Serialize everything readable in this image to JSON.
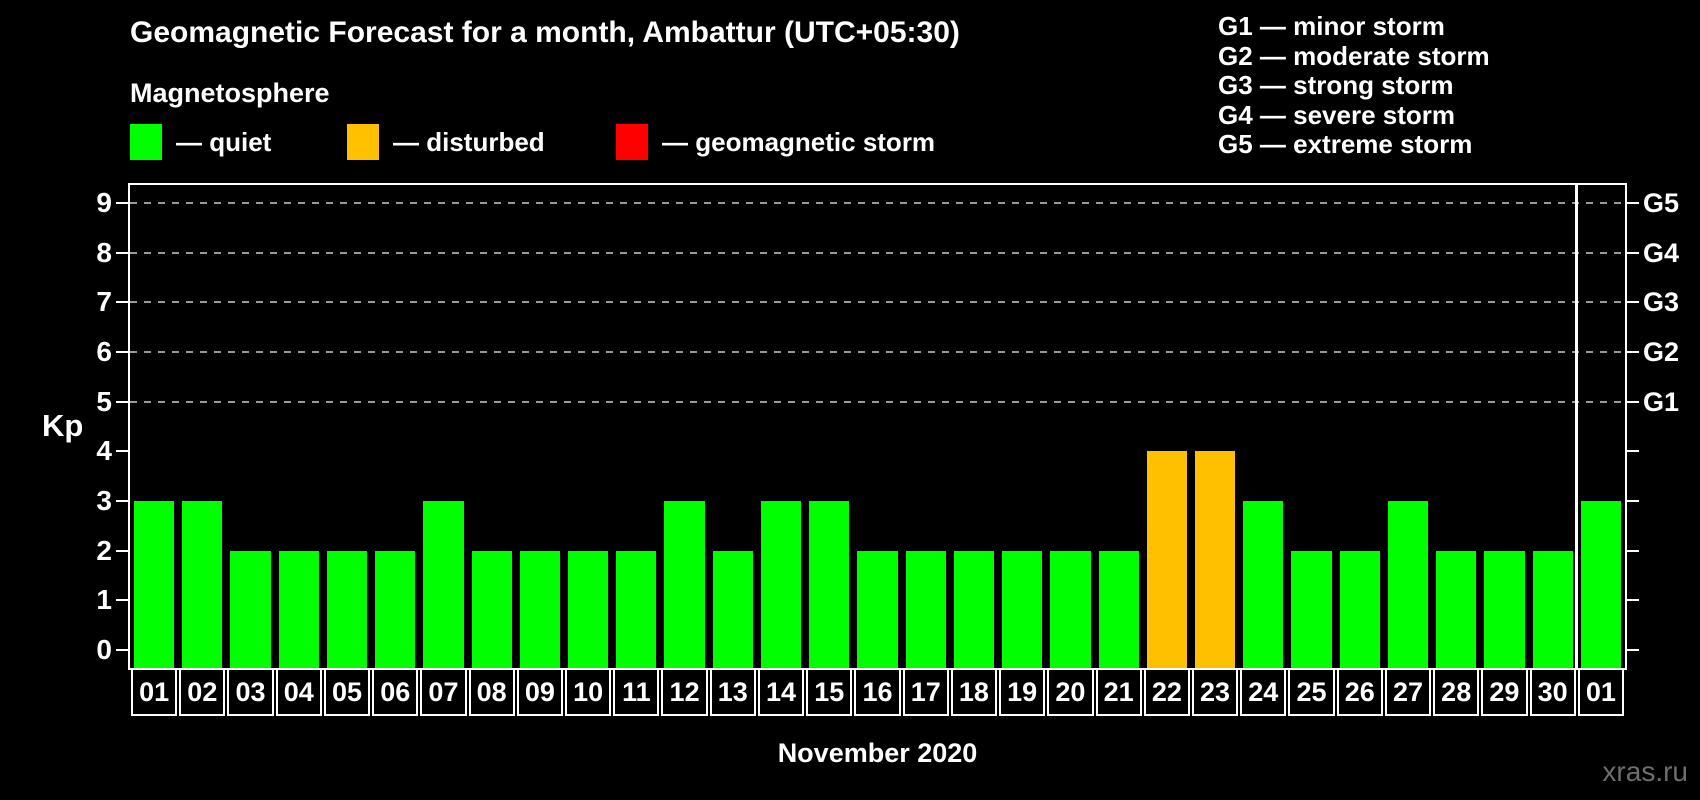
{
  "title": "Geomagnetic Forecast for a month, Ambattur (UTC+05:30)",
  "subtitle": "Magnetosphere",
  "legend": {
    "items": [
      {
        "key": "quiet",
        "label": "— quiet",
        "color": "#00ff00"
      },
      {
        "key": "disturbed",
        "label": "— disturbed",
        "color": "#ffc000"
      },
      {
        "key": "storm",
        "label": "— geomagnetic storm",
        "color": "#ff0000"
      }
    ]
  },
  "storm_scale_legend": [
    "G1 — minor storm",
    "G2 — moderate storm",
    "G3 — strong storm",
    "G4 — severe storm",
    "G5 — extreme storm"
  ],
  "watermark": "xras.ru",
  "chart_data": {
    "type": "bar",
    "title": "Geomagnetic Forecast for a month, Ambattur (UTC+05:30)",
    "xlabel": "November 2020",
    "ylabel": "Kp",
    "ylim": [
      0,
      9
    ],
    "yticks": [
      0,
      1,
      2,
      3,
      4,
      5,
      6,
      7,
      8,
      9
    ],
    "gridlines_at": [
      5,
      6,
      7,
      8,
      9
    ],
    "grid": "dashed-on-storm-levels-only",
    "legend_position": "top",
    "right_axis_labels": [
      {
        "value": 5,
        "label": "G1"
      },
      {
        "value": 6,
        "label": "G2"
      },
      {
        "value": 7,
        "label": "G3"
      },
      {
        "value": 8,
        "label": "G4"
      },
      {
        "value": 9,
        "label": "G5"
      }
    ],
    "categories": [
      "01",
      "02",
      "03",
      "04",
      "05",
      "06",
      "07",
      "08",
      "09",
      "10",
      "11",
      "12",
      "13",
      "14",
      "15",
      "16",
      "17",
      "18",
      "19",
      "20",
      "21",
      "22",
      "23",
      "24",
      "25",
      "26",
      "27",
      "28",
      "29",
      "30",
      "01"
    ],
    "values": [
      3,
      3,
      2,
      2,
      2,
      2,
      3,
      2,
      2,
      2,
      2,
      3,
      2,
      3,
      3,
      2,
      2,
      2,
      2,
      2,
      2,
      4,
      4,
      3,
      2,
      2,
      3,
      2,
      2,
      2,
      3
    ],
    "statuses": [
      "quiet",
      "quiet",
      "quiet",
      "quiet",
      "quiet",
      "quiet",
      "quiet",
      "quiet",
      "quiet",
      "quiet",
      "quiet",
      "quiet",
      "quiet",
      "quiet",
      "quiet",
      "quiet",
      "quiet",
      "quiet",
      "quiet",
      "quiet",
      "quiet",
      "disturbed",
      "disturbed",
      "quiet",
      "quiet",
      "quiet",
      "quiet",
      "quiet",
      "quiet",
      "quiet",
      "quiet"
    ],
    "colors": {
      "quiet": "#00ff00",
      "disturbed": "#ffc000",
      "storm": "#ff0000"
    },
    "month_separator_after_index": 29
  }
}
